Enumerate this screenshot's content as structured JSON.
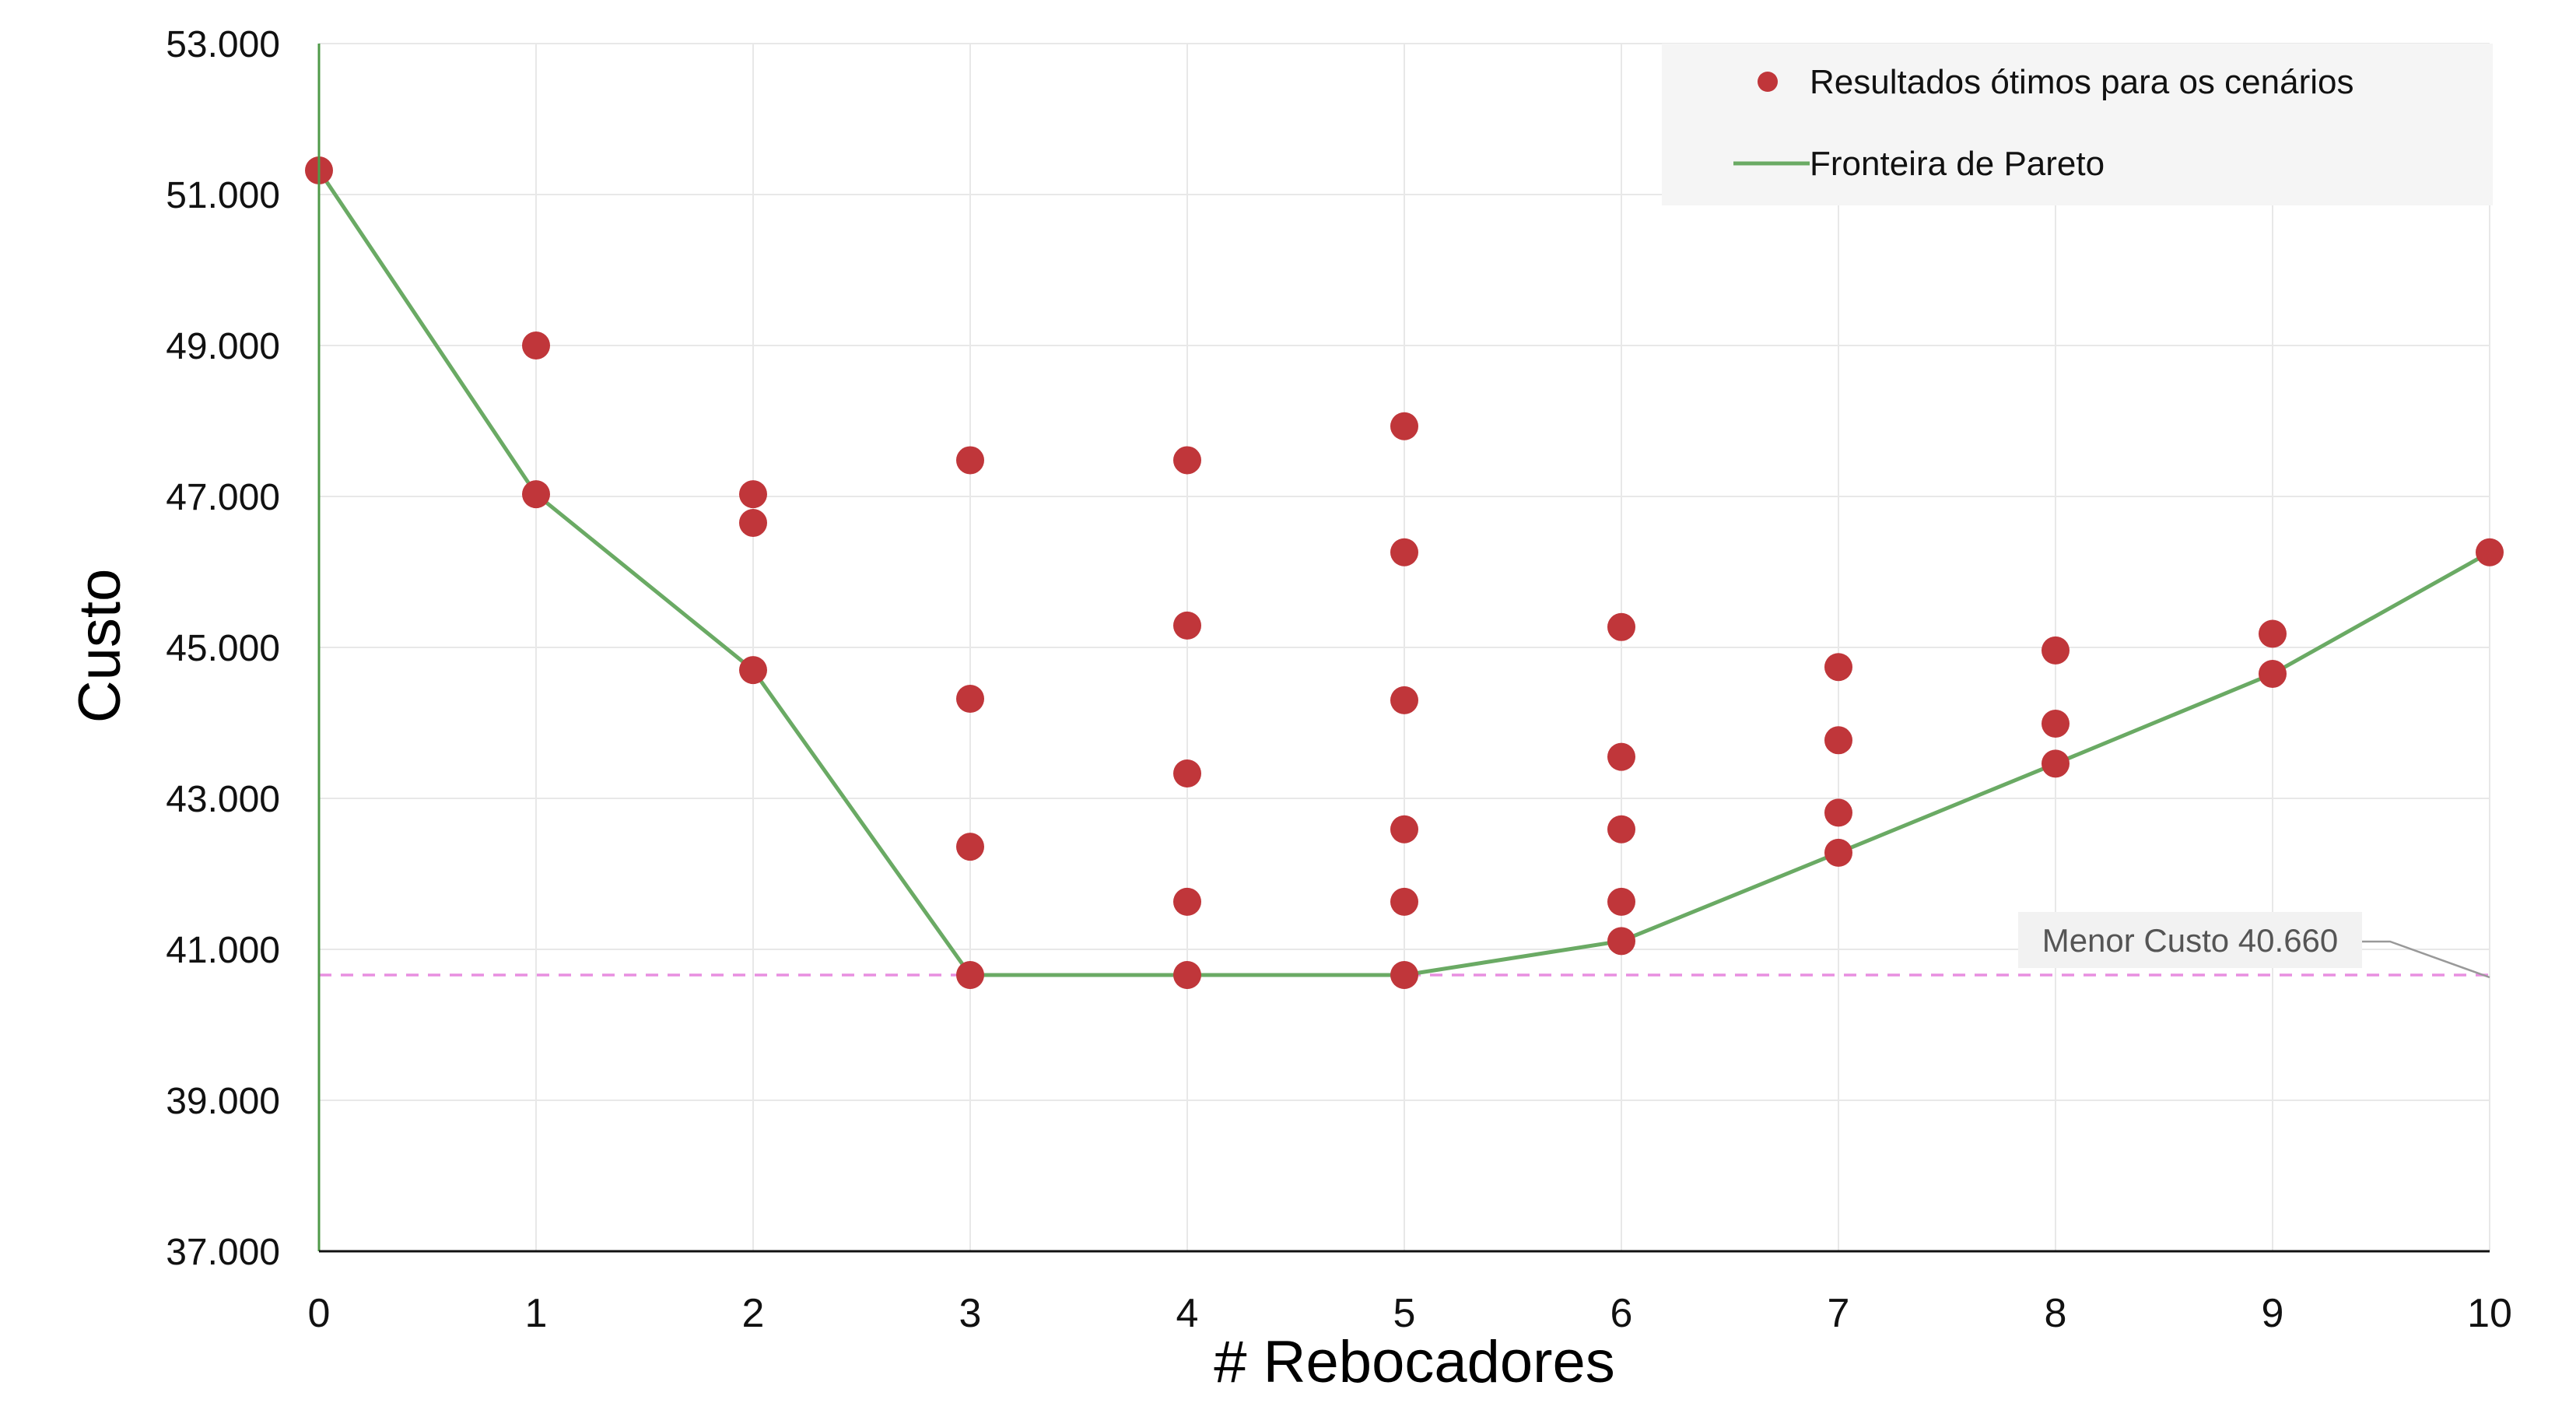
{
  "chart_data": {
    "type": "scatter",
    "xlabel": "# Rebocadores",
    "ylabel": "Custo",
    "xlim": [
      0,
      10
    ],
    "ylim": [
      37000,
      53000
    ],
    "x_ticks": [
      0,
      1,
      2,
      3,
      4,
      5,
      6,
      7,
      8,
      9,
      10
    ],
    "y_ticks": [
      37000,
      39000,
      41000,
      43000,
      45000,
      47000,
      49000,
      51000,
      53000
    ],
    "x_tick_labels": [
      "0",
      "1",
      "2",
      "3",
      "4",
      "5",
      "6",
      "7",
      "8",
      "9",
      "10"
    ],
    "y_tick_labels": [
      "37.000",
      "39.000",
      "41.000",
      "43.000",
      "45.000",
      "47.000",
      "49.000",
      "51.000",
      "53.000"
    ],
    "grid": true,
    "legend_position": "top-right",
    "series": [
      {
        "name": "Resultados ótimos para os cenários",
        "kind": "scatter",
        "color": "#c0363a",
        "points": [
          {
            "x": 0,
            "y": 51320
          },
          {
            "x": 1,
            "y": 49000
          },
          {
            "x": 1,
            "y": 47030
          },
          {
            "x": 2,
            "y": 47030
          },
          {
            "x": 2,
            "y": 46650
          },
          {
            "x": 2,
            "y": 44700
          },
          {
            "x": 3,
            "y": 47480
          },
          {
            "x": 3,
            "y": 44320
          },
          {
            "x": 3,
            "y": 42360
          },
          {
            "x": 3,
            "y": 40660
          },
          {
            "x": 4,
            "y": 47480
          },
          {
            "x": 4,
            "y": 45290
          },
          {
            "x": 4,
            "y": 43330
          },
          {
            "x": 4,
            "y": 41630
          },
          {
            "x": 4,
            "y": 40660
          },
          {
            "x": 5,
            "y": 47930
          },
          {
            "x": 5,
            "y": 46260
          },
          {
            "x": 5,
            "y": 44300
          },
          {
            "x": 5,
            "y": 42590
          },
          {
            "x": 5,
            "y": 41630
          },
          {
            "x": 5,
            "y": 40660
          },
          {
            "x": 6,
            "y": 45270
          },
          {
            "x": 6,
            "y": 43550
          },
          {
            "x": 6,
            "y": 42590
          },
          {
            "x": 6,
            "y": 41630
          },
          {
            "x": 6,
            "y": 41110
          },
          {
            "x": 7,
            "y": 44740
          },
          {
            "x": 7,
            "y": 43770
          },
          {
            "x": 7,
            "y": 42810
          },
          {
            "x": 7,
            "y": 42280
          },
          {
            "x": 8,
            "y": 44960
          },
          {
            "x": 8,
            "y": 43990
          },
          {
            "x": 8,
            "y": 43460
          },
          {
            "x": 9,
            "y": 45180
          },
          {
            "x": 9,
            "y": 44650
          },
          {
            "x": 10,
            "y": 46260
          }
        ]
      },
      {
        "name": "Fronteira de Pareto",
        "kind": "line",
        "color": "#6aaa64",
        "x": [
          0,
          1,
          2,
          3,
          4,
          5,
          6,
          7,
          8,
          9,
          10
        ],
        "y": [
          51320,
          47030,
          44700,
          40660,
          40660,
          40660,
          41110,
          42280,
          43460,
          44650,
          46260
        ]
      }
    ],
    "reference_line": {
      "y": 40660,
      "color": "#e88fe0",
      "style": "dashed",
      "label": "Menor Custo 40.660"
    }
  }
}
